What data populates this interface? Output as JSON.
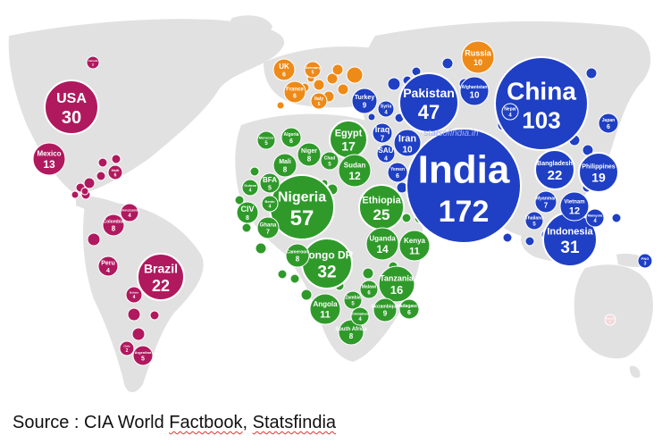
{
  "map": {
    "watermark": "statsofindia.in",
    "colors": {
      "asia": "#1f3fc4",
      "africa": "#2f9a2a",
      "europe": "#ee8a17",
      "americas": "#b0195e",
      "land": "#e1e1e1"
    },
    "countries": [
      {
        "name": "India",
        "value": "172",
        "region": "asia"
      },
      {
        "name": "China",
        "value": "103",
        "region": "asia"
      },
      {
        "name": "Pakistan",
        "value": "47",
        "region": "asia"
      },
      {
        "name": "Indonesia",
        "value": "31",
        "region": "asia"
      },
      {
        "name": "Bangladesh",
        "value": "22",
        "region": "asia"
      },
      {
        "name": "Philippines",
        "value": "19",
        "region": "asia"
      },
      {
        "name": "Vietnam",
        "value": "12",
        "region": "asia"
      },
      {
        "name": "Afghanistan",
        "value": "10",
        "region": "asia"
      },
      {
        "name": "Iran",
        "value": "10",
        "region": "asia"
      },
      {
        "name": "Turkey",
        "value": "9",
        "region": "asia"
      },
      {
        "name": "Iraq",
        "value": "7",
        "region": "asia"
      },
      {
        "name": "Myanmar",
        "value": "7",
        "region": "asia"
      },
      {
        "name": "Japan",
        "value": "6",
        "region": "asia"
      },
      {
        "name": "Yemen",
        "value": "6",
        "region": "asia"
      },
      {
        "name": "SAU",
        "value": "4",
        "region": "asia"
      },
      {
        "name": "Nepal",
        "value": "4",
        "region": "asia"
      },
      {
        "name": "Syria",
        "value": "4",
        "region": "asia"
      },
      {
        "name": "Thailand",
        "value": "5",
        "region": "asia"
      },
      {
        "name": "Malaysia",
        "value": "4",
        "region": "asia"
      },
      {
        "name": "Russia",
        "value": "10",
        "region": "europe"
      },
      {
        "name": "UK",
        "value": "6",
        "region": "europe"
      },
      {
        "name": "France",
        "value": "6",
        "region": "europe"
      },
      {
        "name": "Germany",
        "value": "5",
        "region": "europe"
      },
      {
        "name": "Italy",
        "value": "5",
        "region": "europe"
      },
      {
        "name": "Nigeria",
        "value": "57",
        "region": "africa"
      },
      {
        "name": "Congo DR",
        "value": "32",
        "region": "africa"
      },
      {
        "name": "Ethiopia",
        "value": "25",
        "region": "africa"
      },
      {
        "name": "Egypt",
        "value": "17",
        "region": "africa"
      },
      {
        "name": "Tanzania",
        "value": "16",
        "region": "africa"
      },
      {
        "name": "Uganda",
        "value": "14",
        "region": "africa"
      },
      {
        "name": "Sudan",
        "value": "12",
        "region": "africa"
      },
      {
        "name": "Kenya",
        "value": "11",
        "region": "africa"
      },
      {
        "name": "Angola",
        "value": "11",
        "region": "africa"
      },
      {
        "name": "South Africa",
        "value": "8",
        "region": "africa"
      },
      {
        "name": "Niger",
        "value": "8",
        "region": "africa"
      },
      {
        "name": "Mali",
        "value": "8",
        "region": "africa"
      },
      {
        "name": "Cameroon",
        "value": "8",
        "region": "africa"
      },
      {
        "name": "CIV",
        "value": "8",
        "region": "africa"
      },
      {
        "name": "Ghana",
        "value": "7",
        "region": "africa"
      },
      {
        "name": "Algeria",
        "value": "6",
        "region": "africa"
      },
      {
        "name": "BFA",
        "value": "5",
        "region": "africa"
      },
      {
        "name": "Chad",
        "value": "5",
        "region": "africa"
      },
      {
        "name": "Zambia",
        "value": "5",
        "region": "africa"
      },
      {
        "name": "Malawi",
        "value": "6",
        "region": "africa"
      },
      {
        "name": "Mozambique",
        "value": "9",
        "region": "africa"
      },
      {
        "name": "Madagascar",
        "value": "6",
        "region": "africa"
      },
      {
        "name": "Zimbabwe",
        "value": "4",
        "region": "africa"
      },
      {
        "name": "Morocco",
        "value": "5",
        "region": "africa"
      },
      {
        "name": "Benin",
        "value": "4",
        "region": "africa"
      },
      {
        "name": "Guinea",
        "value": "4",
        "region": "africa"
      },
      {
        "name": "USA",
        "value": "30",
        "region": "americas"
      },
      {
        "name": "Brazil",
        "value": "22",
        "region": "americas"
      },
      {
        "name": "Mexico",
        "value": "13",
        "region": "americas"
      },
      {
        "name": "Colombia",
        "value": "8",
        "region": "americas"
      },
      {
        "name": "Peru",
        "value": "4",
        "region": "americas"
      },
      {
        "name": "Haiti",
        "value": "6",
        "region": "americas"
      },
      {
        "name": "Argentina",
        "value": "5",
        "region": "americas"
      },
      {
        "name": "Venezuela",
        "value": "4",
        "region": "americas"
      },
      {
        "name": "Canada",
        "value": "2",
        "region": "americas"
      },
      {
        "name": "Bolivia",
        "value": "4",
        "region": "americas"
      },
      {
        "name": "Chile",
        "value": "2",
        "region": "americas"
      },
      {
        "name": "PNG",
        "value": "3",
        "region": "asia"
      },
      {
        "name": "Australia",
        "value": "2",
        "region": "other"
      }
    ]
  },
  "source": {
    "prefix": "Source : CIA World ",
    "factbook": "Factbook",
    "sep": ", ",
    "statsfindia": "Statsfindia"
  }
}
